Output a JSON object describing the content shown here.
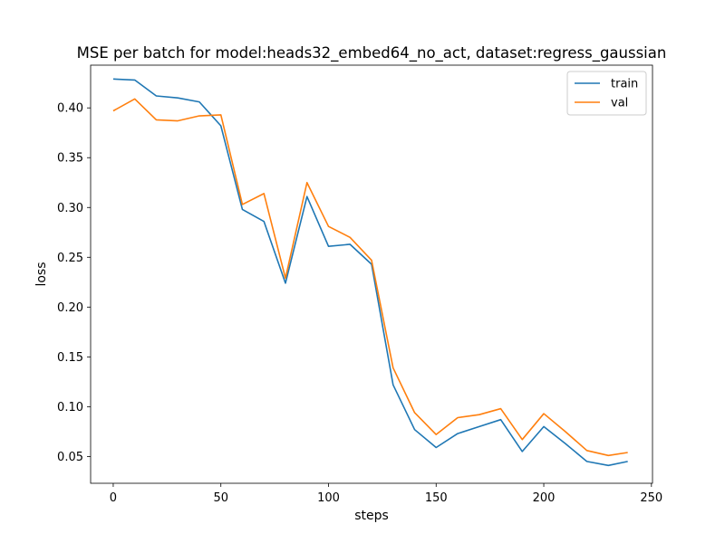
{
  "chart_data": {
    "type": "line",
    "title": "MSE per batch for model:heads32_embed64_no_act, dataset:regress_gaussian",
    "xlabel": "steps",
    "ylabel": "loss",
    "xlim": [
      -10.5,
      250.5
    ],
    "ylim": [
      0.0231,
      0.4429
    ],
    "xticks": [
      0,
      50,
      100,
      150,
      200,
      250
    ],
    "yticks": [
      0.05,
      0.1,
      0.15,
      0.2,
      0.25,
      0.3,
      0.35,
      0.4
    ],
    "ytick_labels": [
      "0.05",
      "0.10",
      "0.15",
      "0.20",
      "0.25",
      "0.30",
      "0.35",
      "0.40"
    ],
    "grid": false,
    "legend": "top-right",
    "x": [
      0,
      10,
      20,
      30,
      40,
      50,
      60,
      70,
      80,
      90,
      100,
      110,
      120,
      130,
      140,
      150,
      160,
      170,
      180,
      190,
      200,
      210,
      220,
      230,
      239
    ],
    "series": [
      {
        "name": "train",
        "color": "#1f77b4",
        "values": [
          0.429,
          0.428,
          0.412,
          0.41,
          0.406,
          0.382,
          0.298,
          0.286,
          0.224,
          0.311,
          0.261,
          0.263,
          0.243,
          0.122,
          0.077,
          0.059,
          0.073,
          0.08,
          0.087,
          0.055,
          0.08,
          0.063,
          0.045,
          0.041,
          0.045
        ]
      },
      {
        "name": "val",
        "color": "#ff7f0e",
        "values": [
          0.397,
          0.409,
          0.388,
          0.387,
          0.392,
          0.393,
          0.303,
          0.314,
          0.229,
          0.325,
          0.281,
          0.27,
          0.247,
          0.139,
          0.094,
          0.072,
          0.089,
          0.092,
          0.098,
          0.067,
          0.093,
          0.075,
          0.056,
          0.051,
          0.054
        ]
      }
    ]
  }
}
